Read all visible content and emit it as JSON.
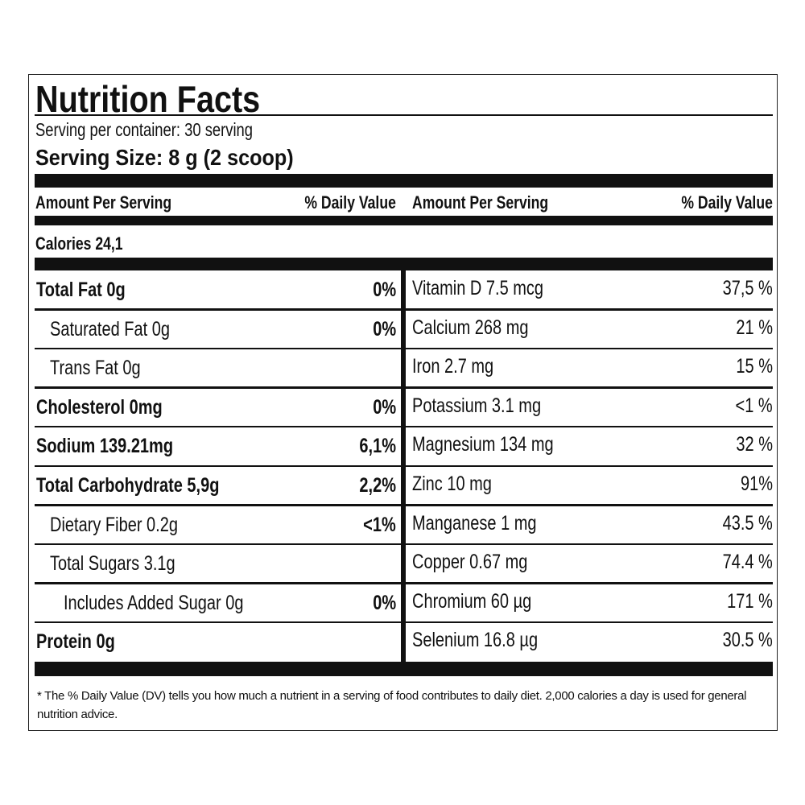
{
  "header": {
    "title": "Nutrition Facts",
    "servings": "Serving per container: 30 serving",
    "serving_size": "Serving Size: 8 g (2 scoop)"
  },
  "columns": [
    {
      "amount": "Amount Per Serving",
      "dv": "% Daily Value"
    },
    {
      "amount": "Amount Per Serving",
      "dv": "% Daily Value"
    }
  ],
  "calories": "Calories 24,1",
  "left_rows": [
    {
      "label": "Total Fat 0g",
      "dv": "0%",
      "bold": true,
      "indent": 0
    },
    {
      "label": "Saturated Fat 0g",
      "dv": "0%",
      "bold": false,
      "indent": 1
    },
    {
      "label": "Trans Fat 0g",
      "bold": false,
      "indent": 1
    },
    {
      "label": "Cholesterol 0mg",
      "dv": "0%",
      "bold": true,
      "indent": 0
    },
    {
      "label": "Sodium 139.21mg",
      "dv": "6,1%",
      "bold": true,
      "indent": 0
    },
    {
      "label": "Total Carbohydrate 5,9g",
      "dv": "2,2%",
      "bold": true,
      "indent": 0
    },
    {
      "label": "Dietary Fiber 0.2g",
      "dv": "<1%",
      "bold": false,
      "indent": 1
    },
    {
      "label": "Total Sugars 3.1g",
      "bold": false,
      "indent": 1
    },
    {
      "label": "Includes Added Sugar 0g",
      "dv": "0%",
      "bold": false,
      "indent": 2
    },
    {
      "label": "Protein 0g",
      "bold": true,
      "indent": 0
    }
  ],
  "right_rows": [
    {
      "label": "Vitamin D 7.5 mcg",
      "dv": "37,5 %"
    },
    {
      "label": "Calcium 268 mg",
      "dv": "21 %"
    },
    {
      "label": "Iron 2.7 mg",
      "dv": "15 %"
    },
    {
      "label": "Potassium 3.1 mg",
      "dv": "<1 %"
    },
    {
      "label": "Magnesium 134 mg",
      "dv": "32 %"
    },
    {
      "label": "Zinc 10 mg",
      "dv": "91%"
    },
    {
      "label": "Manganese 1 mg",
      "dv": "43.5 %"
    },
    {
      "label": "Copper 0.67 mg",
      "dv": "74.4 %"
    },
    {
      "label": "Chromium 60 µg",
      "dv": "171 %"
    },
    {
      "label": "Selenium 16.8 µg",
      "dv": "30.5 %"
    }
  ],
  "footnote": "* The % Daily Value (DV) tells you how much a nutrient in a serving of food contributes to daily diet. 2,000 calories a day is used for general nutrition advice."
}
